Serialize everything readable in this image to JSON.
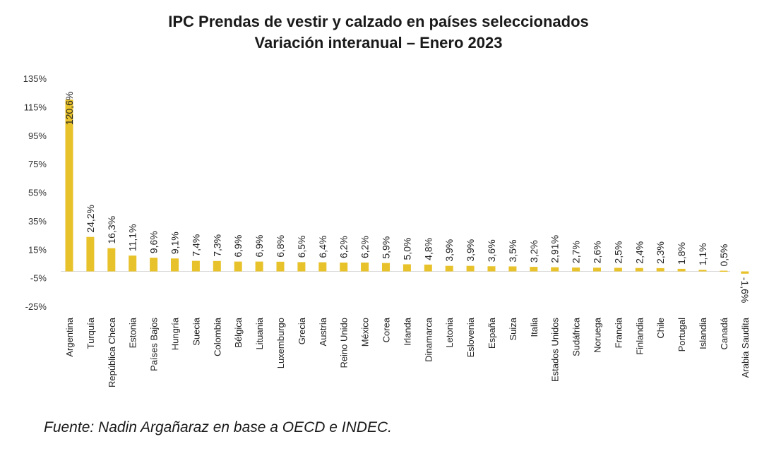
{
  "chart_data": {
    "type": "bar",
    "title": "IPC Prendas de vestir y calzado en países seleccionados",
    "subtitle": "Variación interanual – Enero 2023",
    "xlabel": "",
    "ylabel": "",
    "ylim": [
      -25,
      135
    ],
    "yticks": [
      "135%",
      "115%",
      "95%",
      "75%",
      "55%",
      "35%",
      "15%",
      "-5%",
      "-25%"
    ],
    "ytick_values": [
      135,
      115,
      95,
      75,
      55,
      35,
      15,
      -5,
      -25
    ],
    "grid": false,
    "legend": "none",
    "bar_color": "#e8c22a",
    "categories": [
      "Argentina",
      "Turquía",
      "República Checa",
      "Estonia",
      "Países Bajos",
      "Hungría",
      "Suecia",
      "Colombia",
      "Bélgica",
      "Lituania",
      "Luxemburgo",
      "Grecia",
      "Austria",
      "Reino Unido",
      "México",
      "Corea",
      "Irlanda",
      "Dinamarca",
      "Letonia",
      "Eslovenia",
      "España",
      "Suiza",
      "Italia",
      "Estados Unidos",
      "Sudáfrica",
      "Noruega",
      "Francia",
      "Finlandia",
      "Chile",
      "Portugal",
      "Islandia",
      "Canadá",
      "Arabia Saudita"
    ],
    "values": [
      120.6,
      24.2,
      16.3,
      11.1,
      9.6,
      9.1,
      7.4,
      7.3,
      6.9,
      6.9,
      6.8,
      6.5,
      6.4,
      6.2,
      6.2,
      5.9,
      5.0,
      4.8,
      3.9,
      3.9,
      3.6,
      3.5,
      3.2,
      2.91,
      2.7,
      2.6,
      2.5,
      2.4,
      2.3,
      1.8,
      1.1,
      0.5,
      -1.6
    ],
    "data_labels": [
      "120,6%",
      "24,2%",
      "16,3%",
      "11,1%",
      "9,6%",
      "9,1%",
      "7,4%",
      "7,3%",
      "6,9%",
      "6,9%",
      "6,8%",
      "6,5%",
      "6,4%",
      "6,2%",
      "6,2%",
      "5,9%",
      "5,0%",
      "4,8%",
      "3,9%",
      "3,9%",
      "3,6%",
      "3,5%",
      "3,2%",
      "2,91%",
      "2,7%",
      "2,6%",
      "2,5%",
      "2,4%",
      "2,3%",
      "1,8%",
      "1,1%",
      "0,5%",
      "-1,6%"
    ]
  },
  "source": "Fuente: Nadin Argañaraz en base a OECD e INDEC."
}
